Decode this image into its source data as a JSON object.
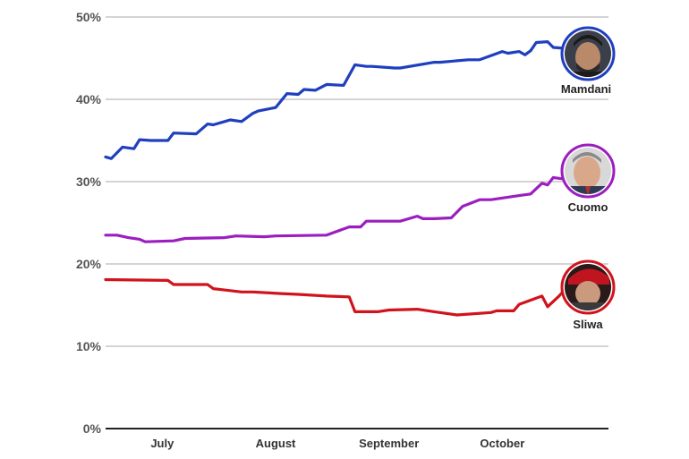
{
  "chart_data": {
    "type": "line",
    "title": "",
    "xlabel": "",
    "ylabel": "",
    "ylim": [
      0,
      50
    ],
    "yticks": [
      0,
      10,
      20,
      30,
      40,
      50
    ],
    "ytick_labels": [
      "0%",
      "10%",
      "20%",
      "30%",
      "40%",
      "50%"
    ],
    "x_labels": [
      "July",
      "August",
      "September",
      "October"
    ],
    "x_label_positions": [
      0.5,
      1.5,
      2.5,
      3.5
    ],
    "x_range": [
      0,
      4.2
    ],
    "grid": true,
    "series": [
      {
        "name": "Mamdani",
        "color": "#1f3fbf",
        "ring_color": "#1f3fbf",
        "x": [
          0,
          0.05,
          0.15,
          0.25,
          0.3,
          0.4,
          0.55,
          0.6,
          0.8,
          0.9,
          0.95,
          1.1,
          1.2,
          1.3,
          1.35,
          1.5,
          1.6,
          1.7,
          1.75,
          1.85,
          1.95,
          2.1,
          2.2,
          2.3,
          2.35,
          2.55,
          2.6,
          2.9,
          2.95,
          3.2,
          3.3,
          3.5,
          3.55,
          3.65,
          3.7,
          3.75,
          3.8,
          3.9,
          3.95,
          4.05,
          4.15,
          4.2
        ],
        "values": [
          33,
          32.8,
          34.2,
          34,
          35.1,
          35,
          35,
          35.9,
          35.8,
          37,
          36.9,
          37.5,
          37.3,
          38.3,
          38.6,
          39,
          40.7,
          40.6,
          41.2,
          41.1,
          41.8,
          41.7,
          44.2,
          44,
          44,
          43.8,
          43.8,
          44.5,
          44.5,
          44.8,
          44.8,
          45.8,
          45.6,
          45.8,
          45.4,
          45.9,
          46.9,
          47,
          46.3,
          46.2,
          45.2,
          45.6
        ]
      },
      {
        "name": "Cuomo",
        "color": "#9b1fbf",
        "ring_color": "#9b1fbf",
        "x": [
          0,
          0.1,
          0.2,
          0.3,
          0.35,
          0.6,
          0.7,
          1.05,
          1.15,
          1.4,
          1.5,
          1.95,
          2.15,
          2.25,
          2.3,
          2.6,
          2.75,
          2.8,
          2.9,
          3.05,
          3.15,
          3.3,
          3.4,
          3.65,
          3.75,
          3.85,
          3.9,
          3.95,
          4.05,
          4.1,
          4.2
        ],
        "values": [
          23.5,
          23.5,
          23.2,
          23,
          22.7,
          22.8,
          23.1,
          23.2,
          23.4,
          23.3,
          23.4,
          23.5,
          24.5,
          24.5,
          25.2,
          25.2,
          25.8,
          25.5,
          25.5,
          25.6,
          27,
          27.8,
          27.8,
          28.3,
          28.5,
          29.8,
          29.6,
          30.5,
          30.3,
          30.8,
          31
        ]
      },
      {
        "name": "Sliwa",
        "color": "#d0131c",
        "ring_color": "#d0131c",
        "x": [
          0,
          0.55,
          0.6,
          0.9,
          0.95,
          1.2,
          1.3,
          1.55,
          1.7,
          1.95,
          2.15,
          2.2,
          2.4,
          2.5,
          2.75,
          2.9,
          3.1,
          3.4,
          3.45,
          3.6,
          3.65,
          3.75,
          3.85,
          3.9,
          4.0,
          4.1,
          4.2
        ],
        "values": [
          18.1,
          18,
          17.5,
          17.5,
          17,
          16.6,
          16.6,
          16.4,
          16.3,
          16.1,
          16,
          14.2,
          14.2,
          14.4,
          14.5,
          14.2,
          13.8,
          14.1,
          14.3,
          14.3,
          15.1,
          15.6,
          16.1,
          14.8,
          16.1,
          17.6,
          17.5
        ]
      }
    ]
  }
}
